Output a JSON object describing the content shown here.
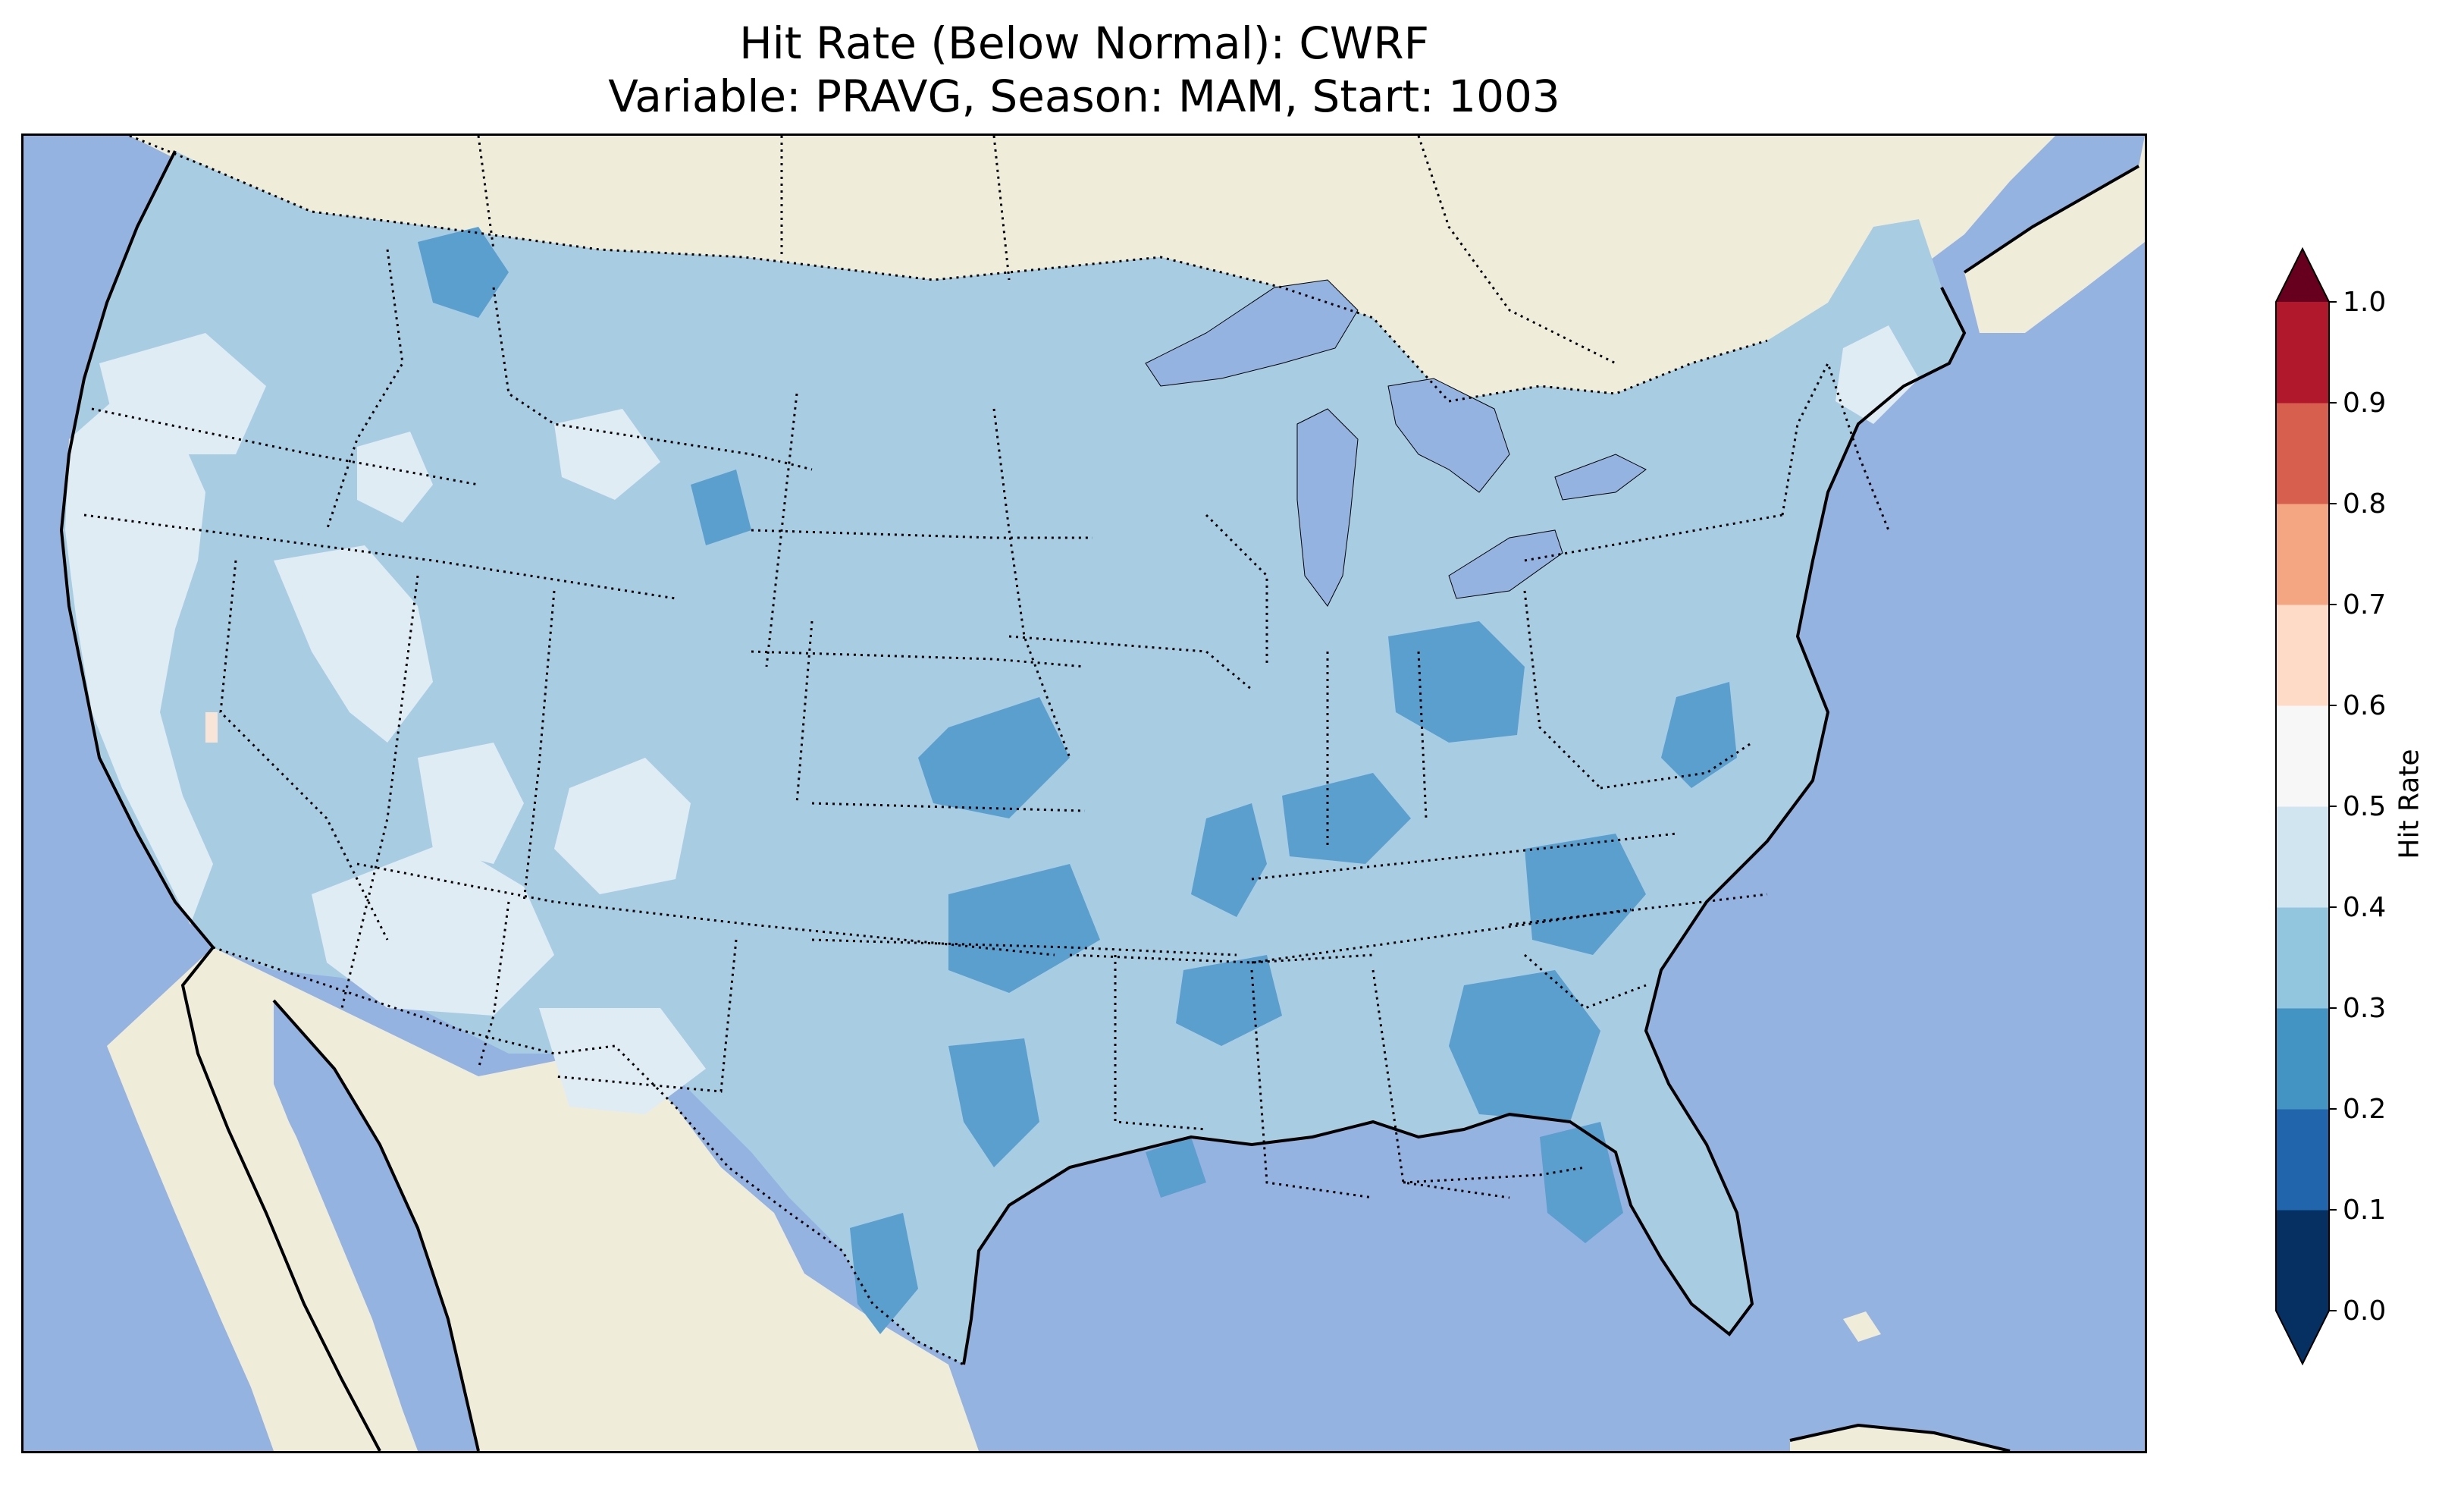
{
  "title": {
    "line1": "Hit Rate (Below Normal): CWRF",
    "line2": "Variable: PRAVG, Season: MAM, Start: 1003"
  },
  "colors": {
    "ocean": "#95b3e0",
    "land": "#efedda",
    "lakes": "#95b3e0",
    "field_main": "#a8cde3",
    "field_low": "#5a9fce",
    "field_high": "#e0ecf4",
    "field_peak": "#f9e4d8"
  },
  "colorbar": {
    "label": "Hit Rate",
    "ticks": [
      "0.0",
      "0.1",
      "0.2",
      "0.3",
      "0.4",
      "0.5",
      "0.6",
      "0.7",
      "0.8",
      "0.9",
      "1.0"
    ],
    "colors": [
      "#053061",
      "#2166ac",
      "#4393c3",
      "#92c5de",
      "#d1e5f0",
      "#f7f7f7",
      "#fddbc7",
      "#f4a582",
      "#d6604d",
      "#b2182b",
      "#67001f"
    ],
    "extend": "both",
    "orientation": "vertical",
    "placement": "right"
  },
  "map": {
    "region": "Contiguous United States",
    "projection": "Lambert Conformal",
    "features": [
      "coastline",
      "state-borders",
      "country-borders",
      "lakes",
      "ocean",
      "land"
    ],
    "field_variable": "Hit Rate (Below Normal)",
    "model": "CWRF"
  }
}
